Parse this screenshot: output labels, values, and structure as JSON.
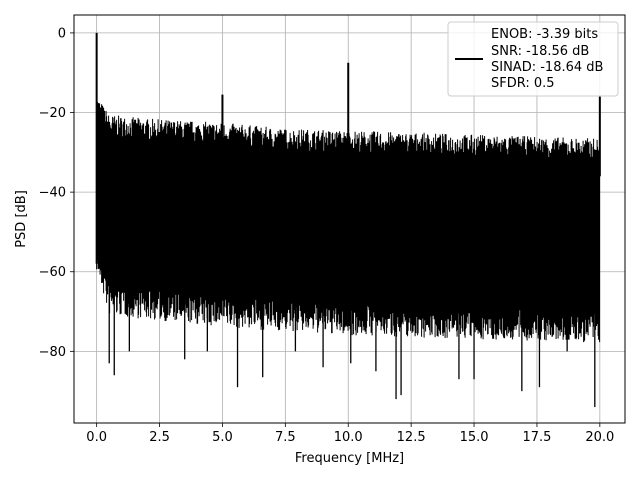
{
  "chart_data": {
    "type": "line",
    "title": "",
    "xlabel": "Frequency [MHz]",
    "ylabel": "PSD [dB]",
    "xlim": [
      -0.9,
      21.0
    ],
    "ylim": [
      -98,
      4.5
    ],
    "xticks": [
      0.0,
      2.5,
      5.0,
      7.5,
      10.0,
      12.5,
      15.0,
      17.5,
      20.0
    ],
    "xtick_labels": [
      "0.0",
      "2.5",
      "5.0",
      "7.5",
      "10.0",
      "12.5",
      "15.0",
      "17.5",
      "20.0"
    ],
    "yticks": [
      0,
      -20,
      -40,
      -60,
      -80
    ],
    "ytick_labels": [
      "0",
      "−20",
      "−40",
      "−60",
      "−80"
    ],
    "grid": true,
    "line_color": "#000000",
    "legend": {
      "placement": "top-right",
      "lines": [
        "ENOB: -3.39 bits",
        "SNR: -18.56 dB",
        "SINAD: -18.64 dB",
        "SFDR: 0.5"
      ]
    },
    "series": [
      {
        "spikes": [
          {
            "x": 0.0,
            "y": 0.0
          },
          {
            "x": 5.0,
            "y": -15.5
          },
          {
            "x": 10.0,
            "y": -7.5
          },
          {
            "x": 20.0,
            "y": -16.0
          }
        ],
        "noise_ceiling": [
          {
            "x": 0.0,
            "y": -21.0
          },
          {
            "x": 0.5,
            "y": -26.0
          },
          {
            "x": 2.0,
            "y": -27.0
          },
          {
            "x": 5.0,
            "y": -28.0
          },
          {
            "x": 7.5,
            "y": -29.5
          },
          {
            "x": 10.0,
            "y": -30.0
          },
          {
            "x": 12.5,
            "y": -30.5
          },
          {
            "x": 15.0,
            "y": -31.0
          },
          {
            "x": 17.5,
            "y": -31.5
          },
          {
            "x": 20.0,
            "y": -32.0
          }
        ],
        "noise_floor": [
          {
            "x": 0.0,
            "y": -52.0
          },
          {
            "x": 0.5,
            "y": -63.0
          },
          {
            "x": 2.0,
            "y": -64.0
          },
          {
            "x": 5.0,
            "y": -66.0
          },
          {
            "x": 10.0,
            "y": -68.0
          },
          {
            "x": 15.0,
            "y": -69.0
          },
          {
            "x": 20.0,
            "y": -70.0
          }
        ],
        "deep_dips": [
          {
            "x": 0.5,
            "y": -83.0
          },
          {
            "x": 0.7,
            "y": -86.0
          },
          {
            "x": 1.3,
            "y": -80.0
          },
          {
            "x": 3.5,
            "y": -82.0
          },
          {
            "x": 4.4,
            "y": -80.0
          },
          {
            "x": 5.6,
            "y": -89.0
          },
          {
            "x": 6.6,
            "y": -86.5
          },
          {
            "x": 7.9,
            "y": -80.0
          },
          {
            "x": 9.0,
            "y": -84.0
          },
          {
            "x": 10.1,
            "y": -83.0
          },
          {
            "x": 11.1,
            "y": -85.0
          },
          {
            "x": 11.9,
            "y": -92.0
          },
          {
            "x": 12.1,
            "y": -91.0
          },
          {
            "x": 14.4,
            "y": -87.0
          },
          {
            "x": 15.0,
            "y": -87.0
          },
          {
            "x": 16.9,
            "y": -90.0
          },
          {
            "x": 17.6,
            "y": -89.0
          },
          {
            "x": 18.7,
            "y": -80.0
          },
          {
            "x": 19.8,
            "y": -94.0
          }
        ]
      }
    ]
  }
}
